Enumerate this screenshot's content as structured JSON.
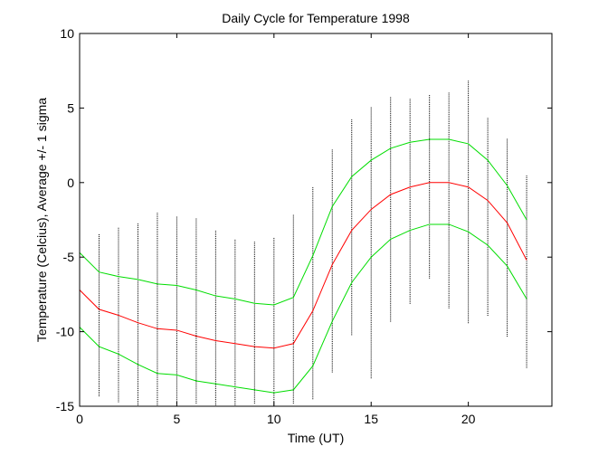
{
  "chart_data": {
    "type": "line",
    "title": "Daily Cycle for Temperature 1998",
    "xlabel": "Time (UT)",
    "ylabel": "Temperature (Celcius), Average +/- 1 sigma",
    "xlim": [
      0,
      24.3
    ],
    "ylim": [
      -15,
      10
    ],
    "xticks": [
      0,
      5,
      10,
      15,
      20
    ],
    "yticks": [
      -15,
      -10,
      -5,
      0,
      5,
      10
    ],
    "grid": false,
    "x": [
      0,
      1,
      2,
      3,
      4,
      5,
      6,
      7,
      8,
      9,
      10,
      11,
      12,
      13,
      14,
      15,
      16,
      17,
      18,
      19,
      20,
      21,
      22,
      23
    ],
    "series": [
      {
        "name": "average",
        "color": "#ff0000",
        "values": [
          -7.2,
          -8.5,
          -8.9,
          -9.4,
          -9.8,
          -9.9,
          -10.3,
          -10.6,
          -10.8,
          -11.0,
          -11.1,
          -10.8,
          -8.6,
          -5.5,
          -3.2,
          -1.8,
          -0.8,
          -0.3,
          0.0,
          0.0,
          -0.3,
          -1.2,
          -2.7,
          -5.2
        ]
      },
      {
        "name": "average + 1 sigma",
        "color": "#00dd00",
        "values": [
          -4.7,
          -6.0,
          -6.3,
          -6.5,
          -6.8,
          -6.9,
          -7.2,
          -7.6,
          -7.8,
          -8.1,
          -8.2,
          -7.7,
          -4.9,
          -1.6,
          0.4,
          1.5,
          2.3,
          2.7,
          2.9,
          2.9,
          2.6,
          1.5,
          -0.2,
          -2.5
        ]
      },
      {
        "name": "average - 1 sigma",
        "color": "#00dd00",
        "values": [
          -9.7,
          -11.0,
          -11.5,
          -12.2,
          -12.8,
          -12.9,
          -13.3,
          -13.5,
          -13.7,
          -13.9,
          -14.1,
          -13.9,
          -12.3,
          -9.3,
          -6.7,
          -5.0,
          -3.8,
          -3.2,
          -2.8,
          -2.8,
          -3.3,
          -4.2,
          -5.6,
          -7.8
        ]
      }
    ],
    "samples": {
      "color": "#000000",
      "ranges": [
        [
          -13.7,
          -3.0
        ],
        [
          -14.3,
          -3.4
        ],
        [
          -14.7,
          -3.0
        ],
        [
          -14.9,
          -2.7
        ],
        [
          -14.9,
          -2.0
        ],
        [
          -14.8,
          -2.3
        ],
        [
          -14.8,
          -2.4
        ],
        [
          -14.9,
          -3.2
        ],
        [
          -14.9,
          -3.8
        ],
        [
          -14.8,
          -3.9
        ],
        [
          -14.9,
          -3.7
        ],
        [
          -14.8,
          -2.1
        ],
        [
          -14.5,
          -0.3
        ],
        [
          -12.7,
          2.2
        ],
        [
          -10.2,
          4.2
        ],
        [
          -13.1,
          5.1
        ],
        [
          -9.3,
          5.7
        ],
        [
          -8.1,
          5.6
        ],
        [
          -6.4,
          5.9
        ],
        [
          -8.4,
          6.0
        ],
        [
          -9.4,
          6.9
        ],
        [
          -8.9,
          4.4
        ],
        [
          -10.3,
          2.9
        ],
        [
          -12.4,
          0.5
        ]
      ]
    }
  }
}
